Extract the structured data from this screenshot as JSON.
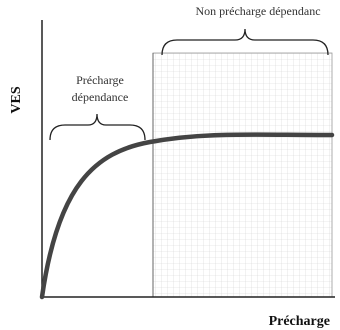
{
  "y_axis_label": "VES",
  "x_axis_label": "Précharge",
  "annotations": {
    "left": [
      "Précharge",
      "dépendance"
    ],
    "right": "Non précharge dépendanc"
  }
}
